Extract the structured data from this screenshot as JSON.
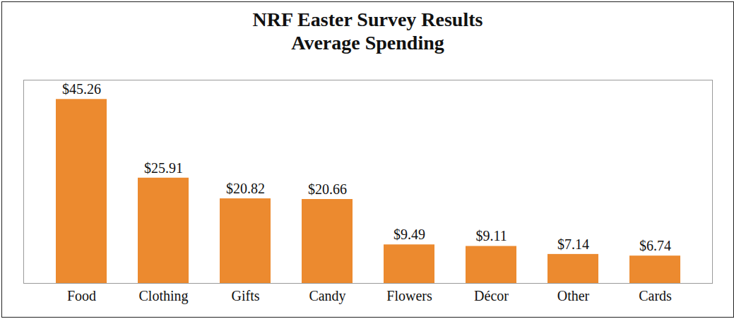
{
  "chart_data": {
    "type": "bar",
    "title": [
      "NRF Easter Survey Results",
      "Average Spending"
    ],
    "categories": [
      "Food",
      "Clothing",
      "Gifts",
      "Candy",
      "Flowers",
      "Décor",
      "Other",
      "Cards"
    ],
    "values": [
      45.26,
      25.91,
      20.82,
      20.66,
      9.49,
      9.11,
      7.14,
      6.74
    ],
    "value_labels": [
      "$45.26",
      "$25.91",
      "$20.82",
      "$20.66",
      "$9.49",
      "$9.11",
      "$7.14",
      "$6.74"
    ],
    "data_labels": true,
    "color": "#ec8a2f",
    "ylim": [
      0,
      50
    ],
    "tick_labels": "x",
    "grid": false
  }
}
